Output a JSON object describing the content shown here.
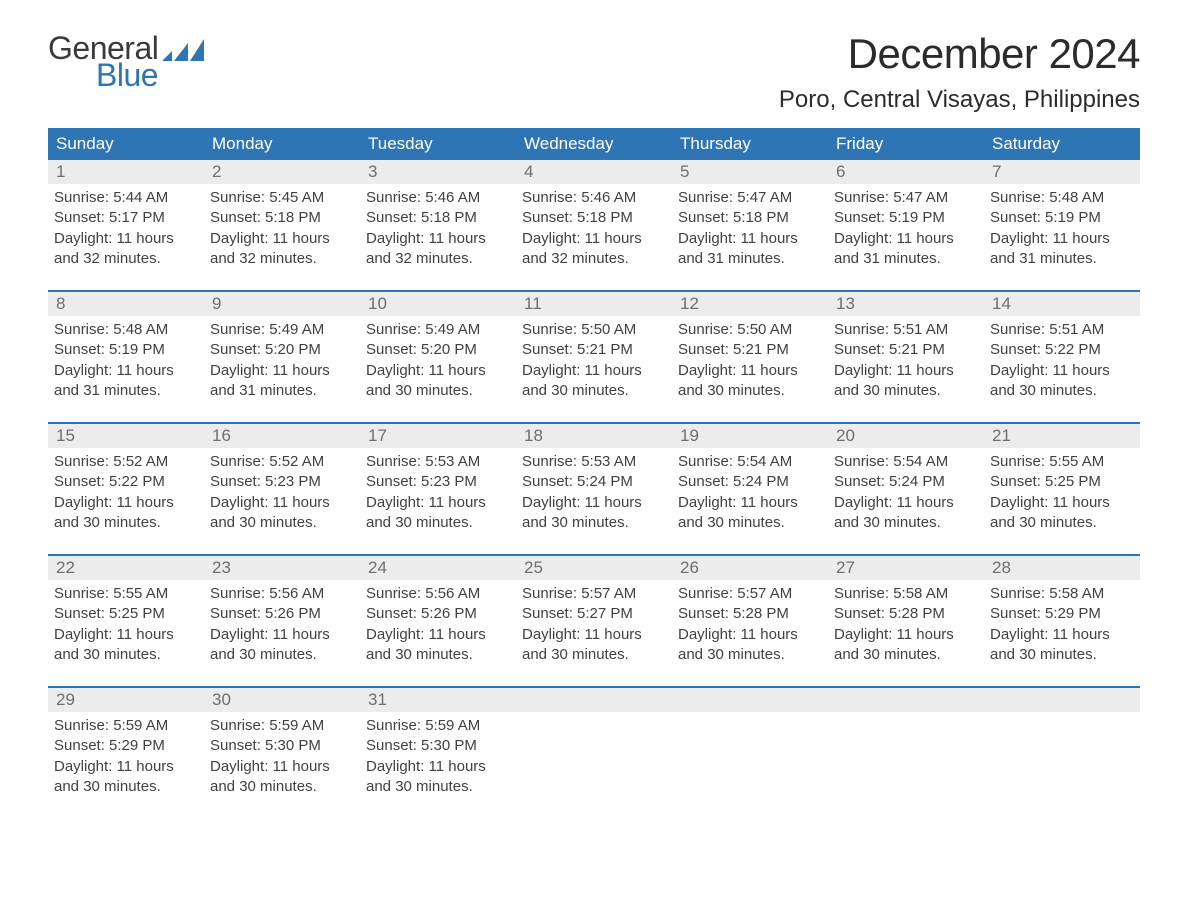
{
  "logo": {
    "word1": "General",
    "word2": "Blue",
    "sail_color": "#2e75b6"
  },
  "title": "December 2024",
  "location": "Poro, Central Visayas, Philippines",
  "colors": {
    "header_bg": "#2e75b6",
    "header_text": "#ffffff",
    "daynum_bg": "#ececec",
    "daynum_text": "#6f6f6f",
    "body_text": "#414141",
    "week_border": "#2e75b6",
    "background": "#ffffff"
  },
  "fonts": {
    "title_size_pt": 32,
    "location_size_pt": 18,
    "header_cell_size_pt": 13,
    "daynum_size_pt": 13,
    "body_size_pt": 11
  },
  "day_labels": [
    "Sunday",
    "Monday",
    "Tuesday",
    "Wednesday",
    "Thursday",
    "Friday",
    "Saturday"
  ],
  "weeks": [
    [
      {
        "n": "1",
        "sunrise": "5:44 AM",
        "sunset": "5:17 PM",
        "daylight": "11 hours and 32 minutes."
      },
      {
        "n": "2",
        "sunrise": "5:45 AM",
        "sunset": "5:18 PM",
        "daylight": "11 hours and 32 minutes."
      },
      {
        "n": "3",
        "sunrise": "5:46 AM",
        "sunset": "5:18 PM",
        "daylight": "11 hours and 32 minutes."
      },
      {
        "n": "4",
        "sunrise": "5:46 AM",
        "sunset": "5:18 PM",
        "daylight": "11 hours and 32 minutes."
      },
      {
        "n": "5",
        "sunrise": "5:47 AM",
        "sunset": "5:18 PM",
        "daylight": "11 hours and 31 minutes."
      },
      {
        "n": "6",
        "sunrise": "5:47 AM",
        "sunset": "5:19 PM",
        "daylight": "11 hours and 31 minutes."
      },
      {
        "n": "7",
        "sunrise": "5:48 AM",
        "sunset": "5:19 PM",
        "daylight": "11 hours and 31 minutes."
      }
    ],
    [
      {
        "n": "8",
        "sunrise": "5:48 AM",
        "sunset": "5:19 PM",
        "daylight": "11 hours and 31 minutes."
      },
      {
        "n": "9",
        "sunrise": "5:49 AM",
        "sunset": "5:20 PM",
        "daylight": "11 hours and 31 minutes."
      },
      {
        "n": "10",
        "sunrise": "5:49 AM",
        "sunset": "5:20 PM",
        "daylight": "11 hours and 30 minutes."
      },
      {
        "n": "11",
        "sunrise": "5:50 AM",
        "sunset": "5:21 PM",
        "daylight": "11 hours and 30 minutes."
      },
      {
        "n": "12",
        "sunrise": "5:50 AM",
        "sunset": "5:21 PM",
        "daylight": "11 hours and 30 minutes."
      },
      {
        "n": "13",
        "sunrise": "5:51 AM",
        "sunset": "5:21 PM",
        "daylight": "11 hours and 30 minutes."
      },
      {
        "n": "14",
        "sunrise": "5:51 AM",
        "sunset": "5:22 PM",
        "daylight": "11 hours and 30 minutes."
      }
    ],
    [
      {
        "n": "15",
        "sunrise": "5:52 AM",
        "sunset": "5:22 PM",
        "daylight": "11 hours and 30 minutes."
      },
      {
        "n": "16",
        "sunrise": "5:52 AM",
        "sunset": "5:23 PM",
        "daylight": "11 hours and 30 minutes."
      },
      {
        "n": "17",
        "sunrise": "5:53 AM",
        "sunset": "5:23 PM",
        "daylight": "11 hours and 30 minutes."
      },
      {
        "n": "18",
        "sunrise": "5:53 AM",
        "sunset": "5:24 PM",
        "daylight": "11 hours and 30 minutes."
      },
      {
        "n": "19",
        "sunrise": "5:54 AM",
        "sunset": "5:24 PM",
        "daylight": "11 hours and 30 minutes."
      },
      {
        "n": "20",
        "sunrise": "5:54 AM",
        "sunset": "5:24 PM",
        "daylight": "11 hours and 30 minutes."
      },
      {
        "n": "21",
        "sunrise": "5:55 AM",
        "sunset": "5:25 PM",
        "daylight": "11 hours and 30 minutes."
      }
    ],
    [
      {
        "n": "22",
        "sunrise": "5:55 AM",
        "sunset": "5:25 PM",
        "daylight": "11 hours and 30 minutes."
      },
      {
        "n": "23",
        "sunrise": "5:56 AM",
        "sunset": "5:26 PM",
        "daylight": "11 hours and 30 minutes."
      },
      {
        "n": "24",
        "sunrise": "5:56 AM",
        "sunset": "5:26 PM",
        "daylight": "11 hours and 30 minutes."
      },
      {
        "n": "25",
        "sunrise": "5:57 AM",
        "sunset": "5:27 PM",
        "daylight": "11 hours and 30 minutes."
      },
      {
        "n": "26",
        "sunrise": "5:57 AM",
        "sunset": "5:28 PM",
        "daylight": "11 hours and 30 minutes."
      },
      {
        "n": "27",
        "sunrise": "5:58 AM",
        "sunset": "5:28 PM",
        "daylight": "11 hours and 30 minutes."
      },
      {
        "n": "28",
        "sunrise": "5:58 AM",
        "sunset": "5:29 PM",
        "daylight": "11 hours and 30 minutes."
      }
    ],
    [
      {
        "n": "29",
        "sunrise": "5:59 AM",
        "sunset": "5:29 PM",
        "daylight": "11 hours and 30 minutes."
      },
      {
        "n": "30",
        "sunrise": "5:59 AM",
        "sunset": "5:30 PM",
        "daylight": "11 hours and 30 minutes."
      },
      {
        "n": "31",
        "sunrise": "5:59 AM",
        "sunset": "5:30 PM",
        "daylight": "11 hours and 30 minutes."
      },
      {
        "empty": true
      },
      {
        "empty": true
      },
      {
        "empty": true
      },
      {
        "empty": true
      }
    ]
  ],
  "labels": {
    "sunrise_prefix": "Sunrise: ",
    "sunset_prefix": "Sunset: ",
    "daylight_prefix": "Daylight: "
  }
}
